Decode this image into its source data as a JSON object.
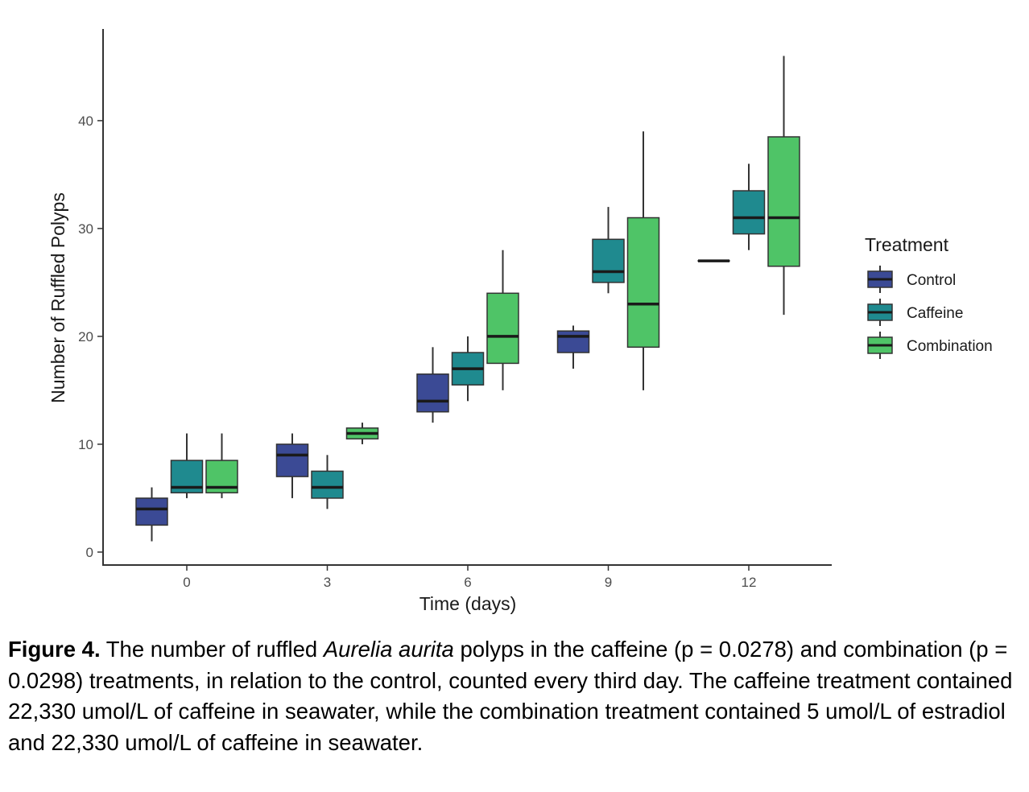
{
  "chart_data": {
    "type": "box",
    "xlabel": "Time (days)",
    "ylabel": "Number of Ruffled Polyps",
    "x_ticks": [
      "0",
      "3",
      "6",
      "9",
      "12"
    ],
    "y_ticks": [
      "0",
      "10",
      "20",
      "30",
      "40"
    ],
    "ylim": [
      -1.2,
      48.5
    ],
    "legend": {
      "title": "Treatment",
      "placement": "right",
      "entries": [
        "Control",
        "Caffeine",
        "Combination"
      ]
    },
    "colors": {
      "Control": "#3b4a95",
      "Caffeine": "#1f8a8f",
      "Combination": "#4fc467"
    },
    "series": [
      {
        "name": "Control",
        "boxes": [
          {
            "x": 0,
            "min": 1,
            "q1": 2.5,
            "median": 4,
            "q3": 5,
            "max": 6
          },
          {
            "x": 3,
            "min": 5,
            "q1": 7,
            "median": 9,
            "q3": 10,
            "max": 11
          },
          {
            "x": 6,
            "min": 12,
            "q1": 13,
            "median": 14,
            "q3": 16.5,
            "max": 19
          },
          {
            "x": 9,
            "min": 17,
            "q1": 18.5,
            "median": 20,
            "q3": 20.5,
            "max": 21
          },
          {
            "x": 12,
            "min": 27,
            "q1": 27,
            "median": 27,
            "q3": 27,
            "max": 27
          }
        ]
      },
      {
        "name": "Caffeine",
        "boxes": [
          {
            "x": 0,
            "min": 5,
            "q1": 5.5,
            "median": 6,
            "q3": 8.5,
            "max": 11
          },
          {
            "x": 3,
            "min": 4,
            "q1": 5,
            "median": 6,
            "q3": 7.5,
            "max": 9
          },
          {
            "x": 6,
            "min": 14,
            "q1": 15.5,
            "median": 17,
            "q3": 18.5,
            "max": 20
          },
          {
            "x": 9,
            "min": 24,
            "q1": 25,
            "median": 26,
            "q3": 29,
            "max": 32
          },
          {
            "x": 12,
            "min": 28,
            "q1": 29.5,
            "median": 31,
            "q3": 33.5,
            "max": 36
          }
        ]
      },
      {
        "name": "Combination",
        "boxes": [
          {
            "x": 0,
            "min": 5,
            "q1": 5.5,
            "median": 6,
            "q3": 8.5,
            "max": 11
          },
          {
            "x": 3,
            "min": 10,
            "q1": 10.5,
            "median": 11,
            "q3": 11.5,
            "max": 12
          },
          {
            "x": 6,
            "min": 15,
            "q1": 17.5,
            "median": 20,
            "q3": 24,
            "max": 28
          },
          {
            "x": 9,
            "min": 15,
            "q1": 19,
            "median": 23,
            "q3": 31,
            "max": 39
          },
          {
            "x": 12,
            "min": 22,
            "q1": 26.5,
            "median": 31,
            "q3": 38.5,
            "max": 46
          }
        ]
      }
    ]
  },
  "caption": {
    "label": "Figure 4.",
    "text1": " The number of ruffled ",
    "species": "Aurelia aurita",
    "text2": " polyps in the caffeine (p = 0.0278) and combination (p = 0.0298) treatments, in relation to the control, counted every third day. The caffeine treatment contained 22,330 umol/L of caffeine in seawater, while the combination treatment contained 5 umol/L of estradiol and 22,330 umol/L of caffeine in seawater."
  }
}
